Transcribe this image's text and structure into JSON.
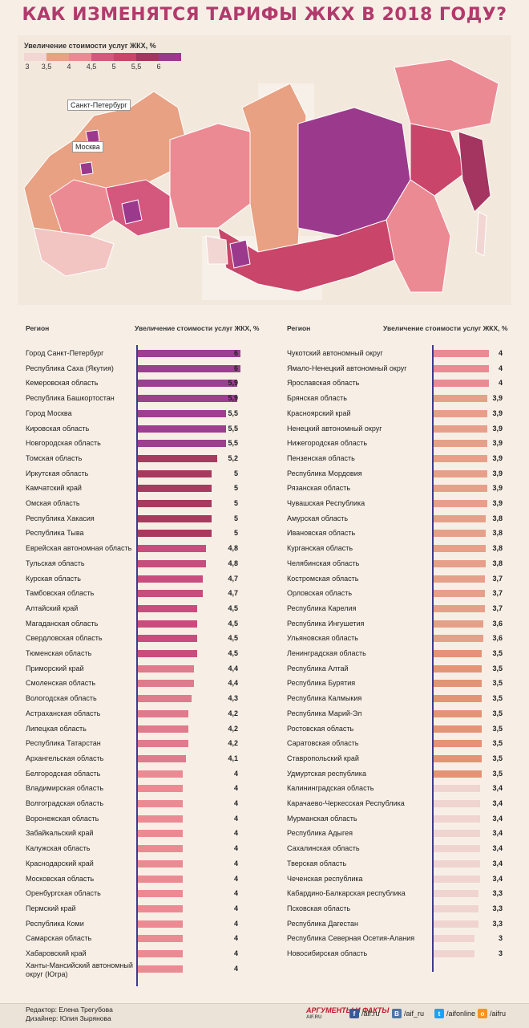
{
  "title": "КАК ИЗМЕНЯТСЯ ТАРИФЫ ЖКХ В 2018 ГОДУ?",
  "legend": {
    "title": "Увеличение стоимости услуг ЖКХ, %",
    "ticks": [
      "3",
      "3,5",
      "4",
      "4,5",
      "5",
      "5,5",
      "6"
    ],
    "colors": [
      "#f2d6d3",
      "#e8a182",
      "#ec8a94",
      "#d4577e",
      "#c9456a",
      "#a33560",
      "#9b3a8c"
    ]
  },
  "map": {
    "labels": [
      "Санкт-Петербург",
      "Москва"
    ]
  },
  "colors": {
    "v6": "#9b3f90",
    "v59": "#9b3f90",
    "v55": "#9d3f8e",
    "v52": "#a13a5f",
    "v5": "#a83a60",
    "v48": "#c64c7b",
    "v45": "#c84d7e",
    "v44": "#e07a8d",
    "v4": "#ec8a94",
    "v39": "#e6a08a",
    "v37": "#e6a08a",
    "v35": "#e49377",
    "v34": "#f0d4d0",
    "v3": "#f3dcd8",
    "axis": "#3f3a8c",
    "title": "#b23a6c"
  },
  "table": {
    "col_region": "Регион",
    "col_increase": "Увеличение стоимости услуг ЖКХ, %"
  },
  "chart_data": [
    {
      "type": "bar",
      "categories": [
        "Город Санкт-Петербург",
        "Республика Саха (Якутия)",
        "Кемеровская область",
        "Республика Башкортостан",
        "Город Москва",
        "Кировская область",
        "Новгородская область",
        "Томская область",
        "Иркутская область",
        "Камчатский край",
        "Омская область",
        "Республика Хакасия",
        "Республика Тыва",
        "Еврейская автономная область",
        "Тульская область",
        "Курская область",
        "Тамбовская область",
        "Алтайский край",
        "Магаданская область",
        "Свердловская область",
        "Тюменская область",
        "Приморский край",
        "Смоленская область",
        "Вологодская область",
        "Астраханская область",
        "Липецкая область",
        "Республика Татарстан",
        "Архангельская область",
        "Белгородская область",
        "Владимирская область",
        "Волгоградская область",
        "Воронежская область",
        "Забайкальский край",
        "Калужская область",
        "Краснодарский край",
        "Московская область",
        "Оренбургская область",
        "Пермский край",
        "Республика Коми",
        "Самарская область",
        "Хабаровский край",
        "Ханты-Мансийский автономный округ (Югра)"
      ],
      "values": [
        6,
        6,
        5.9,
        5.9,
        5.5,
        5.5,
        5.5,
        5.2,
        5,
        5,
        5,
        5,
        5,
        4.8,
        4.8,
        4.7,
        4.7,
        4.5,
        4.5,
        4.5,
        4.5,
        4.4,
        4.4,
        4.3,
        4.2,
        4.2,
        4.2,
        4.1,
        4,
        4,
        4,
        4,
        4,
        4,
        4,
        4,
        4,
        4,
        4,
        4,
        4,
        4
      ],
      "labels": [
        "6",
        "6",
        "5,9",
        "5,9",
        "5,5",
        "5,5",
        "5,5",
        "5,2",
        "5",
        "5",
        "5",
        "5",
        "5",
        "4,8",
        "4,8",
        "4,7",
        "4,7",
        "4,5",
        "4,5",
        "4,5",
        "4,5",
        "4,4",
        "4,4",
        "4,3",
        "4,2",
        "4,2",
        "4,2",
        "4,1",
        "4",
        "4",
        "4",
        "4",
        "4",
        "4",
        "4",
        "4",
        "4",
        "4",
        "4",
        "4",
        "4",
        "4"
      ],
      "xlabel": "Регион",
      "ylabel": "Увеличение стоимости услуг ЖКХ, %"
    },
    {
      "type": "bar",
      "categories": [
        "Чукотский автономный округ",
        "Ямало-Ненецкий автономный округ",
        "Ярославская область",
        "Брянская область",
        "Красноярский край",
        "Ненецкий автономный округ",
        "Нижегородская область",
        "Пензенская область",
        "Республика Мордовия",
        "Рязанская область",
        "Чувашская Республика",
        "Амурская область",
        "Ивановская область",
        "Курганская область",
        "Челябинская область",
        "Костромская область",
        "Орловская область",
        "Республика Карелия",
        "Республика Ингушетия",
        "Ульяновская область",
        "Ленинградская область",
        "Республика Алтай",
        "Республика Бурятия",
        "Республика Калмыкия",
        "Республика Марий-Эл",
        "Ростовская область",
        "Саратовская область",
        "Ставропольский край",
        "Удмуртская республика",
        "Калининградская область",
        "Карачаево-Черкесская Республика",
        "Мурманская область",
        "Республика Адыгея",
        "Сахалинская область",
        "Тверская область",
        "Чеченская республика",
        "Кабардино-Балкарская республика",
        "Псковская область",
        "Республика Дагестан",
        "Республика Северная Осетия-Алания",
        "Новосибирская область"
      ],
      "values": [
        4,
        4,
        4,
        3.9,
        3.9,
        3.9,
        3.9,
        3.9,
        3.9,
        3.9,
        3.9,
        3.8,
        3.8,
        3.8,
        3.8,
        3.7,
        3.7,
        3.7,
        3.6,
        3.6,
        3.5,
        3.5,
        3.5,
        3.5,
        3.5,
        3.5,
        3.5,
        3.5,
        3.5,
        3.4,
        3.4,
        3.4,
        3.4,
        3.4,
        3.4,
        3.4,
        3.3,
        3.3,
        3.3,
        3,
        3
      ],
      "labels": [
        "4",
        "4",
        "4",
        "3,9",
        "3,9",
        "3,9",
        "3,9",
        "3,9",
        "3,9",
        "3,9",
        "3,9",
        "3,8",
        "3,8",
        "3,8",
        "3,8",
        "3,7",
        "3,7",
        "3,7",
        "3,6",
        "3,6",
        "3,5",
        "3,5",
        "3,5",
        "3,5",
        "3,5",
        "3,5",
        "3,5",
        "3,5",
        "3,5",
        "3,4",
        "3,4",
        "3,4",
        "3,4",
        "3,4",
        "3,4",
        "3,4",
        "3,3",
        "3,3",
        "3,3",
        "3",
        "3"
      ],
      "xlabel": "Регион",
      "ylabel": "Увеличение стоимости услуг ЖКХ, %"
    }
  ],
  "footer": {
    "editor": "Редактор: Елена Трегубова",
    "designer": "Дизайнер: Юлия Зырянова",
    "brand": "АРГУМЕНТЫ И ФАКТЫ",
    "brand_site": "AIF.RU",
    "social": [
      {
        "icon": "facebook-icon",
        "glyph": "f",
        "color": "#3b5998",
        "text": "/aif.ru"
      },
      {
        "icon": "vk-icon",
        "glyph": "В",
        "color": "#4a76a8",
        "text": "/aif_ru"
      },
      {
        "icon": "twitter-icon",
        "glyph": "t",
        "color": "#1da1f2",
        "text": "/aifonline"
      },
      {
        "icon": "odnoklassniki-icon",
        "glyph": "о",
        "color": "#f7931e",
        "text": "/aifru"
      }
    ]
  }
}
